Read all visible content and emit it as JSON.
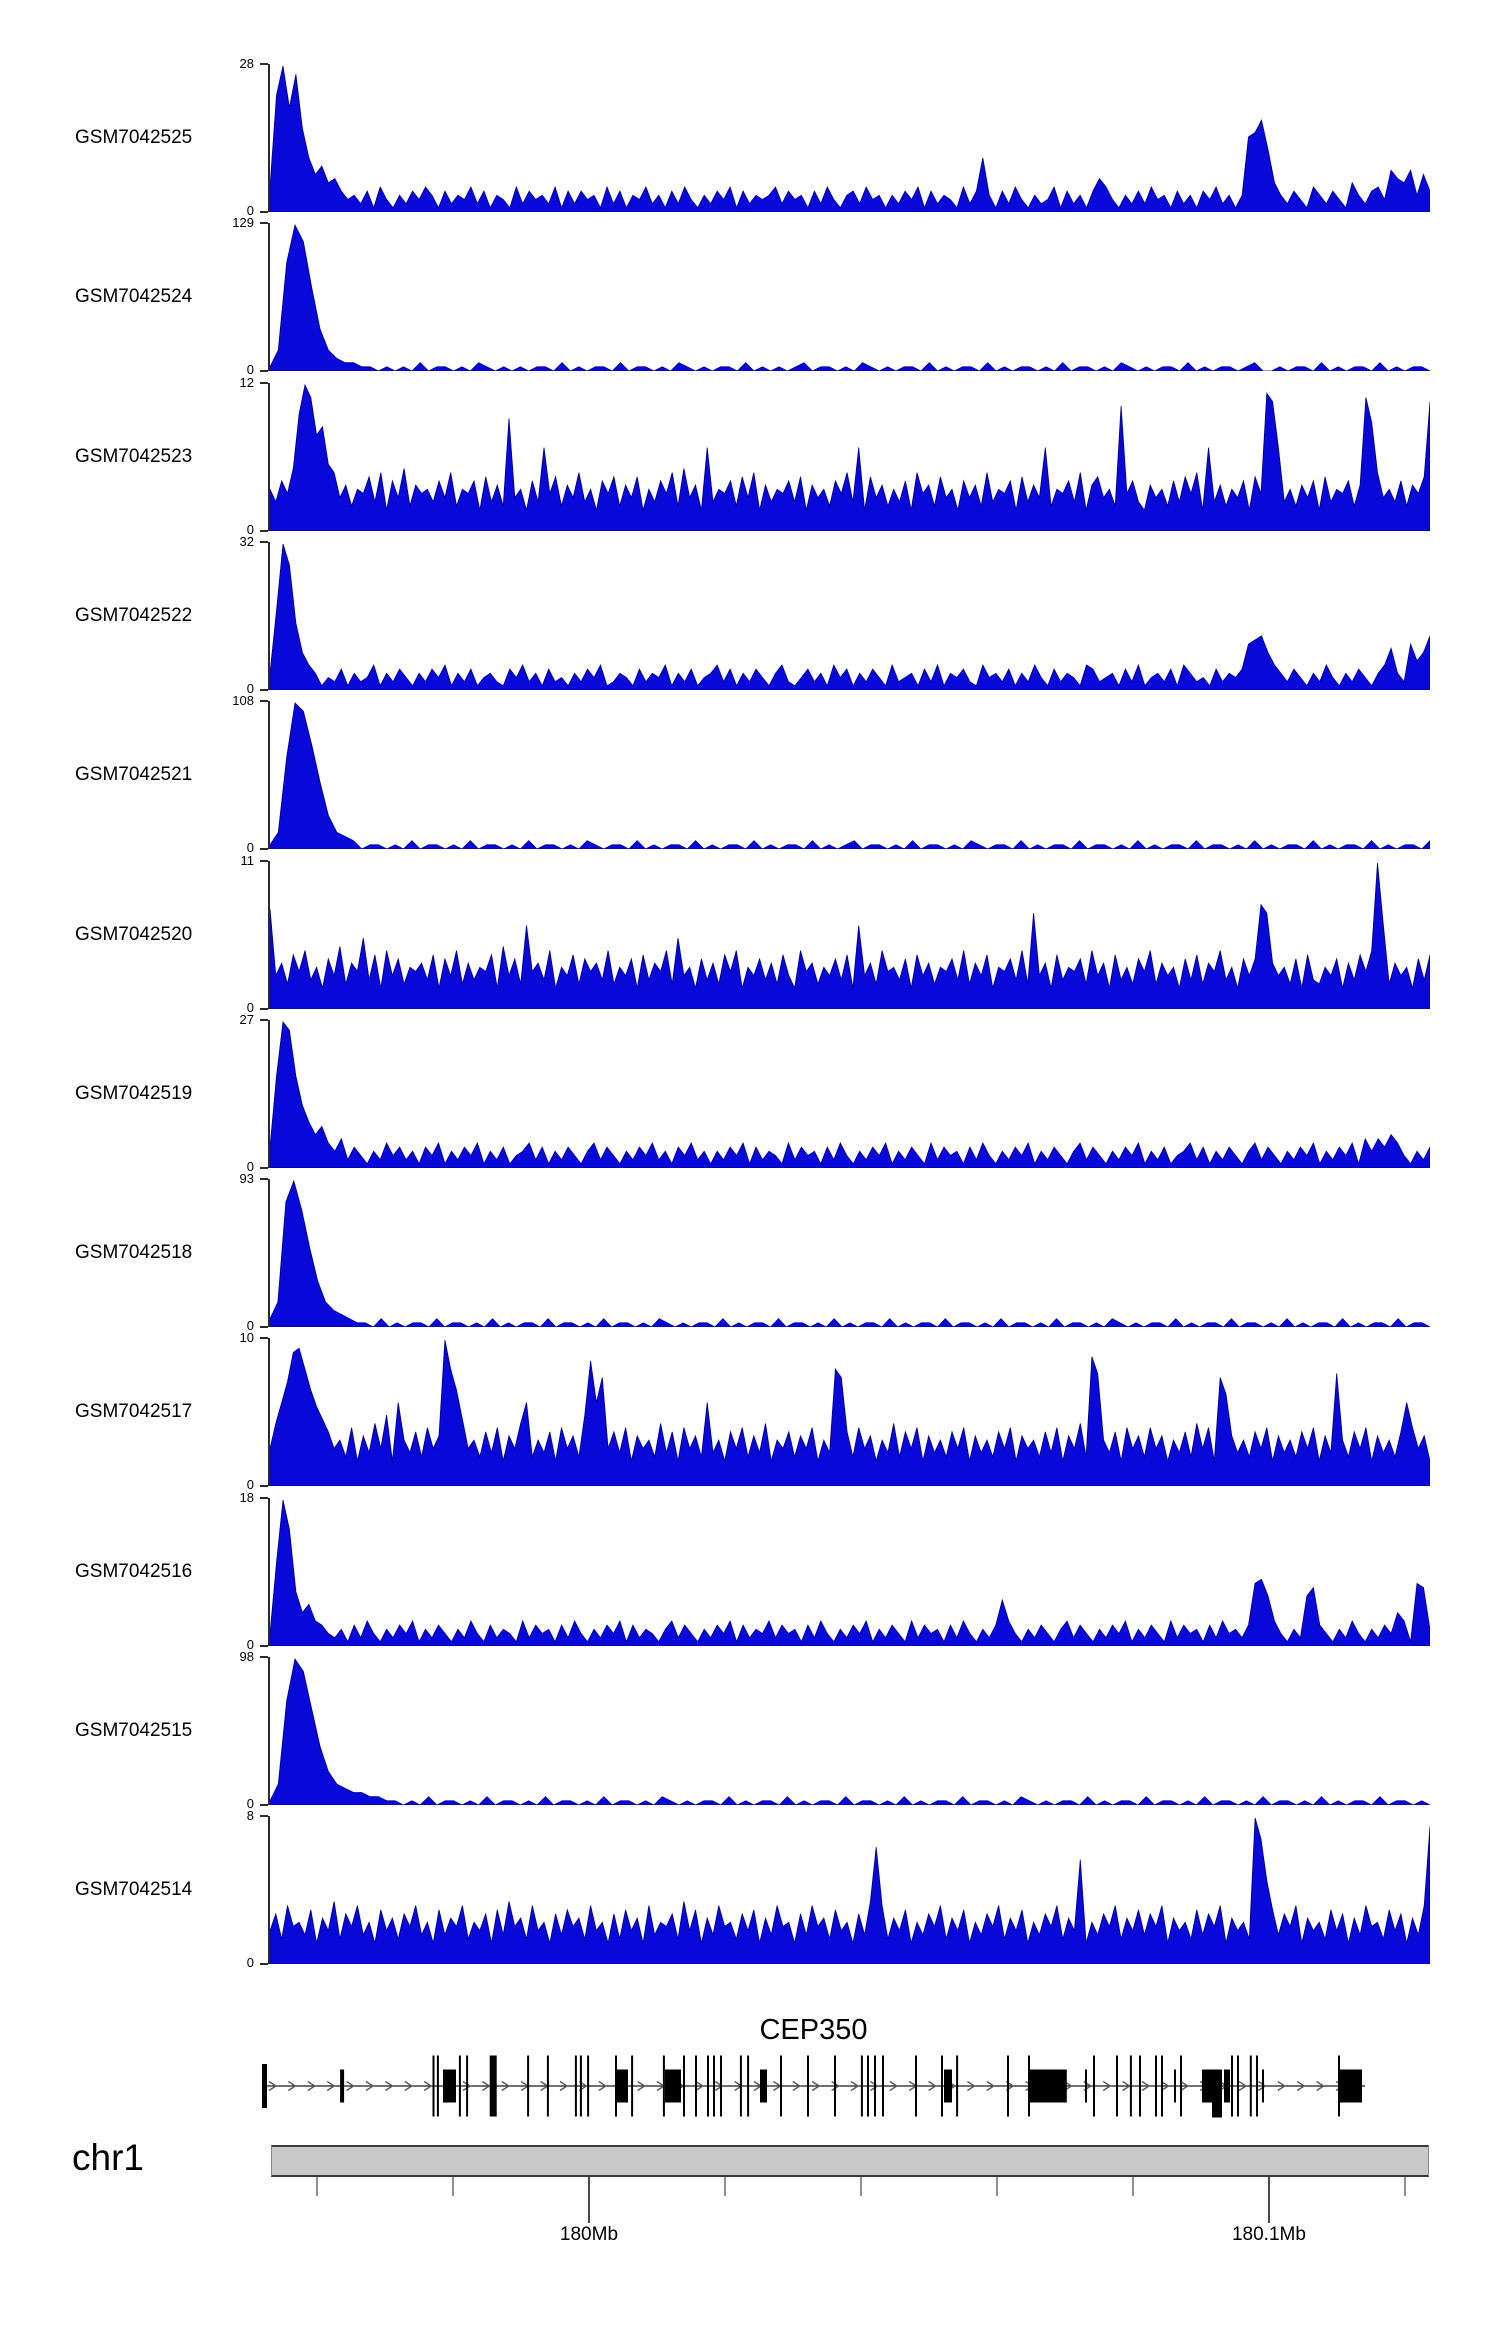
{
  "chart_data": {
    "type": "area",
    "description": "Genome browser coverage figure: 12 signal tracks over a CEP350 gene model on chr1",
    "profile_encoding": "each char is base36 (0-35) = fraction of track ymax, sampled left to right",
    "y_base_label": "0",
    "signal_color": "#0808d8",
    "tracks": [
      {
        "label": "GSM7042525",
        "ymax": 28,
        "ybase": 0,
        "profile": "6szpxkd9b78534251631425364152436251431625342615253416251436241526314253615243462534152631452634142536152431625d415263142361524158631425263415241536241 4ijmf742531642531742563a87a495"
      },
      {
        "label": "GSM7042524",
        "ymax": 129,
        "ybase": 0,
        "profile": "15qzvka5322110101020110102101010110201011020110102101011020101012011010210101102010110201011010201101021010110201011012001011020101102010110"
      },
      {
        "label": "GSM7042523",
        "ymax": 12,
        "ybase": 0,
        "profile": "a7c9fszwnpge8b6a9d7e5c8f6b9a7c8e6a9c5d7b6r8a5c7k9d6b8e7a5c9d6b8d5a7c9e6f8b5k7a9c6d8e5b7a9c7d5b8a6c9e7k5d8b6a7c5e9b6d8a5c8b6e7a9c5d7b8k6a9c7e5bd8a6u9c75b8a6c7d9e5k7b6a8c5d9xvk7a6b8c5d7a9c6bwqe8a7c6b9dv"
      },
      {
        "label": "GSM7042522",
        "ymax": 32,
        "ybase": 0,
        "profile": "4jzug9641325142361425314253614251342153624152314253612431524361425134625142531462135241635142531623415261435216342514263152431652341526134251642315243 5bcd9642531426314253146a42b79d"
      },
      {
        "label": "GSM7042521",
        "ymax": 108,
        "ybase": 0,
        "profile": "14mzxpg8432011010201101020110102011010210110201011020101102010110201012011010201101021011020101102011010201011020110102010110201011020101102"
      },
      {
        "label": "GSM7042520",
        "ymax": 11,
        "ybase": 0,
        "profile": "o8b6d9e7a5c8f6b9h7d5e8c6a9b7d5c8e6b7a9d5f8c6k9b7e5a8d6c9b7e6a8c5d7b9e6h8a5c7b6d9e5a8c7b6d85e9b6a8c7d5k8b6e9a7c5d8b6a9c7e6b8d5a9c7e6n8b5d7a9c6e8b5d7a6c9e6b8a5c7d6b9e7a5c8cpnb8a6c5d76a8c5b7d9ezk6b8a5c7d"
      },
      {
        "label": "GSM7042519",
        "ymax": 27,
        "ybase": 0,
        "profile": "5mzxmfb8a647253142635241536142536142513462514253146253142536241536241425361524316253415263142536142531625341526314253614253146253142536142513462514253146253142536142536174758631425"
      },
      {
        "label": "GSM7042518",
        "ymax": 93,
        "ybase": 0,
        "profile": "26uzsjb643211020101102011010201011020110102011010210101102010110201101020101102010110201101020110102011010210101102010110201101 02010110201011020110"
      },
      {
        "label": "GSM7042517",
        "ymax": 10,
        "ybase": 0,
        "profile": "9fkpwxsnjgd9b7e6c8f9h6kb8d7e9czsng9b7d8e6c9fk7b8d6e9c7hukq9d8e6c9b7f8d6e9c7k8b6d9e7c8f6b9d7c9e6b8sqd7e9c6b8f7d9e6c8b7d9e6c8b7d9e6c9b7d8e6c9f7vrb8d6e9c7e9c6b8d7f9e6qmc8b7d9e6c8b7d9e6c8rb7d9e6c8b7dke9c6"
      },
      {
        "label": "GSM7042516",
        "ymax": 18,
        "ybase": 0,
        "profile": "3kzsd8a6532415263142536142531426315243162534152631425361524314625314253615243625341526314253614253162534152631425b63142531462531425361425316253415263425fgc63142ce531426314253861fe4"
      },
      {
        "label": "GSM7042515",
        "ymax": 98,
        "ybase": 0,
        "profile": "15pzwne8543322110102011010201101020110102011010210101102010110201011020110102010110201101021010110201011020110102011010201101020101102011010"
      },
      {
        "label": "GSM7042514",
        "ymax": 8,
        "ybase": 0,
        "profile": "8c6e9a7d5b8f6c9e7a5d8b6c9e7a5d7b9e6a8c5d7f9b6e8a5c7d9b6e8a5c6d8b5e7a9c6f8d5b7e9a6c8d5b7e9a5c7e9b6d8a5c7fse6b8d5a7c9e6b8d5a7c9e6b8d5a7c9e6b8p5a7c9e6b8d7c9e5b8a6d7c9e5b8a6zukd7c9e5b8a6d8c5b7e9a6d8c5b7ex"
      }
    ],
    "gene_track": {
      "gene_name": "CEP350",
      "strand": "right",
      "exons": [
        [
          0.0,
          5,
          "start"
        ],
        [
          0.071,
          4,
          "med"
        ],
        [
          0.155,
          2,
          "tall"
        ],
        [
          0.159,
          2,
          "tall"
        ],
        [
          0.1645,
          13,
          "thick"
        ],
        [
          0.179,
          2,
          "tall"
        ],
        [
          0.1855,
          2,
          "tall"
        ],
        [
          0.207,
          7,
          "tallthick"
        ],
        [
          0.241,
          2,
          "tall"
        ],
        [
          0.259,
          2,
          "tall"
        ],
        [
          0.2845,
          2,
          "tall"
        ],
        [
          0.289,
          2,
          "tall"
        ],
        [
          0.2955,
          2,
          "tall"
        ],
        [
          0.3209,
          2,
          "tall"
        ],
        [
          0.3227,
          11,
          "thick"
        ],
        [
          0.3355,
          2,
          "tall"
        ],
        [
          0.3645,
          2,
          "tall"
        ],
        [
          0.3664,
          16,
          "thick"
        ],
        [
          0.3827,
          2,
          "tall"
        ],
        [
          0.3936,
          2,
          "tall"
        ],
        [
          0.4045,
          2,
          "tall"
        ],
        [
          0.41,
          2,
          "tall"
        ],
        [
          0.4164,
          2,
          "tall"
        ],
        [
          0.4345,
          2,
          "tall"
        ],
        [
          0.441,
          2,
          "tall"
        ],
        [
          0.4527,
          7,
          "thick"
        ],
        [
          0.4709,
          2,
          "tall"
        ],
        [
          0.4955,
          2,
          "tall"
        ],
        [
          0.52,
          2,
          "tall"
        ],
        [
          0.5445,
          2,
          "tall"
        ],
        [
          0.55,
          2,
          "tall"
        ],
        [
          0.5564,
          2,
          "tall"
        ],
        [
          0.5636,
          2,
          "tall"
        ],
        [
          0.5936,
          2,
          "tall"
        ],
        [
          0.6173,
          2,
          "tall"
        ],
        [
          0.62,
          8,
          "thick"
        ],
        [
          0.631,
          2,
          "tall"
        ],
        [
          0.6773,
          2,
          "tall"
        ],
        [
          0.6964,
          2,
          "tall"
        ],
        [
          0.698,
          37,
          "thick"
        ],
        [
          0.7482,
          2,
          "med"
        ],
        [
          0.7555,
          2,
          "tall"
        ],
        [
          0.7764,
          2,
          "tall"
        ],
        [
          0.789,
          2,
          "tall"
        ],
        [
          0.7973,
          2,
          "tall"
        ],
        [
          0.8118,
          2,
          "tall"
        ],
        [
          0.8173,
          2,
          "tall"
        ],
        [
          0.8291,
          2,
          "med"
        ],
        [
          0.8345,
          2,
          "tall"
        ],
        [
          0.8545,
          10,
          "thick"
        ],
        [
          0.8636,
          10,
          "deep"
        ],
        [
          0.8745,
          6,
          "thick"
        ],
        [
          0.8809,
          2,
          "tall"
        ],
        [
          0.8864,
          2,
          "tall"
        ],
        [
          0.898,
          2,
          "tall"
        ],
        [
          0.9036,
          2,
          "tall"
        ],
        [
          0.9091,
          2,
          "med"
        ],
        [
          0.9782,
          2,
          "tall"
        ],
        [
          0.98,
          22,
          "thick"
        ]
      ]
    },
    "chromosome_axis": {
      "chromosome": "chr1",
      "ticks": [
        {
          "pos": 0.0397,
          "major": false,
          "label": ""
        },
        {
          "pos": 0.157,
          "major": false,
          "label": ""
        },
        {
          "pos": 0.2746,
          "major": true,
          "label": "180Mb"
        },
        {
          "pos": 0.392,
          "major": false,
          "label": ""
        },
        {
          "pos": 0.5095,
          "major": false,
          "label": ""
        },
        {
          "pos": 0.627,
          "major": false,
          "label": ""
        },
        {
          "pos": 0.7443,
          "major": false,
          "label": ""
        },
        {
          "pos": 0.8618,
          "major": true,
          "label": "180.1Mb"
        },
        {
          "pos": 0.9793,
          "major": false,
          "label": ""
        }
      ]
    }
  },
  "colors": {
    "signal_fill": "#0808d8",
    "signal_edge": "#000090",
    "axis": "#2b2b2b",
    "gene": "#000000",
    "arrow": "#5a5a5a",
    "chrom_bar_fill": "#c9c9c9",
    "chrom_bar_border": "#3a3a3a",
    "tick_minor": "#909090",
    "tick_major": "#4a4a4a"
  }
}
